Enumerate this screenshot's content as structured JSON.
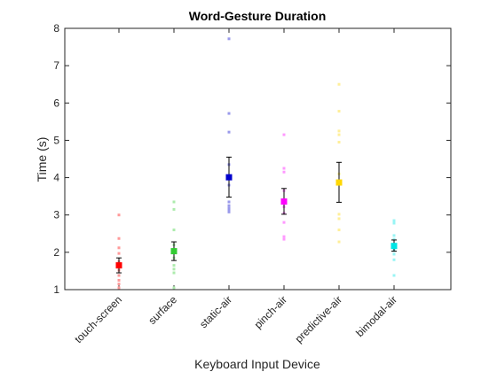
{
  "chart_data": {
    "type": "scatter",
    "title": "Word-Gesture Duration",
    "xlabel": "Keyboard Input Device",
    "ylabel": "Time (s)",
    "ylim": [
      1,
      8
    ],
    "yticks": [
      1,
      2,
      3,
      4,
      5,
      6,
      7,
      8
    ],
    "grid": false,
    "categories": [
      "touch-screen",
      "surface",
      "static-air",
      "pinch-air",
      "predictive-air",
      "bimodal-air"
    ],
    "colors": [
      "#ff0000",
      "#33cc33",
      "#0000cc",
      "#ff00ff",
      "#ffd700",
      "#00e5e5"
    ],
    "means": [
      1.65,
      2.03,
      4.01,
      3.36,
      3.87,
      2.17
    ],
    "ci_low": [
      1.45,
      1.78,
      3.48,
      3.02,
      3.34,
      2.03
    ],
    "ci_high": [
      1.85,
      2.28,
      4.55,
      3.71,
      4.41,
      2.33
    ],
    "points": [
      [
        3.0,
        2.37,
        2.12,
        1.97,
        1.75,
        1.52,
        1.38,
        1.25,
        1.15,
        1.05
      ],
      [
        3.35,
        3.15,
        2.6,
        2.2,
        1.85,
        1.65,
        1.55,
        1.45,
        1.05
      ],
      [
        7.72,
        5.72,
        5.22,
        4.35,
        3.8,
        3.35,
        3.25,
        3.18,
        3.12,
        3.08
      ],
      [
        5.15,
        4.25,
        4.15,
        3.65,
        3.32,
        3.22,
        3.05,
        2.8,
        2.42,
        2.35
      ],
      [
        6.5,
        5.78,
        5.25,
        5.15,
        4.95,
        4.1,
        3.02,
        2.9,
        2.6,
        2.28
      ],
      [
        2.85,
        2.78,
        2.45,
        2.35,
        2.2,
        2.12,
        2.05,
        1.95,
        1.8,
        1.38
      ]
    ]
  }
}
